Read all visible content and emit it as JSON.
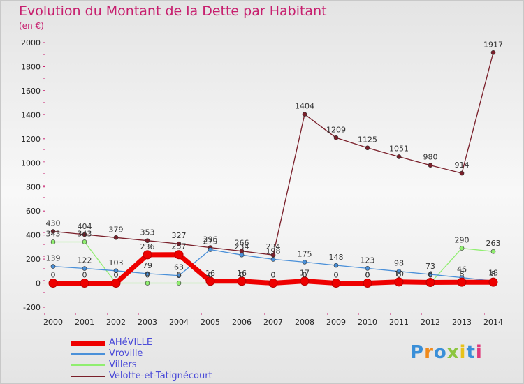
{
  "chart_data": {
    "type": "line",
    "title": "Evolution du Montant de la Dette par Habitant",
    "unit_label": "(en €)",
    "x": [
      "2000",
      "2001",
      "2002",
      "2003",
      "2004",
      "2005",
      "2006",
      "2007",
      "2008",
      "2009",
      "2010",
      "2011",
      "2012",
      "2013",
      "2014"
    ],
    "ylim": [
      -200,
      2000
    ],
    "yticks": [
      -200,
      0,
      200,
      400,
      600,
      800,
      1000,
      1200,
      1400,
      1600,
      1800,
      2000
    ],
    "grid": false,
    "legend_position": "bottom-left",
    "series": [
      {
        "name": "AHéVILLE",
        "color": "#ee0000",
        "values": [
          0,
          0,
          0,
          236,
          237,
          16,
          16,
          0,
          17,
          0,
          0,
          10,
          6,
          8,
          8
        ]
      },
      {
        "name": "Vroville",
        "color": "#4a90d9",
        "values": [
          139,
          122,
          103,
          79,
          63,
          279,
          234,
          198,
          175,
          148,
          123,
          98,
          73,
          46,
          18
        ]
      },
      {
        "name": "Villers",
        "color": "#90ee70",
        "values": [
          343,
          343,
          0,
          0,
          0,
          0,
          0,
          0,
          0,
          0,
          0,
          0,
          0,
          290,
          263
        ]
      },
      {
        "name": "Velotte-et-Tatignécourt",
        "color": "#7a1f2a",
        "values": [
          430,
          404,
          379,
          353,
          327,
          296,
          266,
          234,
          1404,
          1209,
          1125,
          1051,
          980,
          914,
          1917
        ]
      }
    ]
  },
  "branding": {
    "logo_text": "Proxiti"
  }
}
